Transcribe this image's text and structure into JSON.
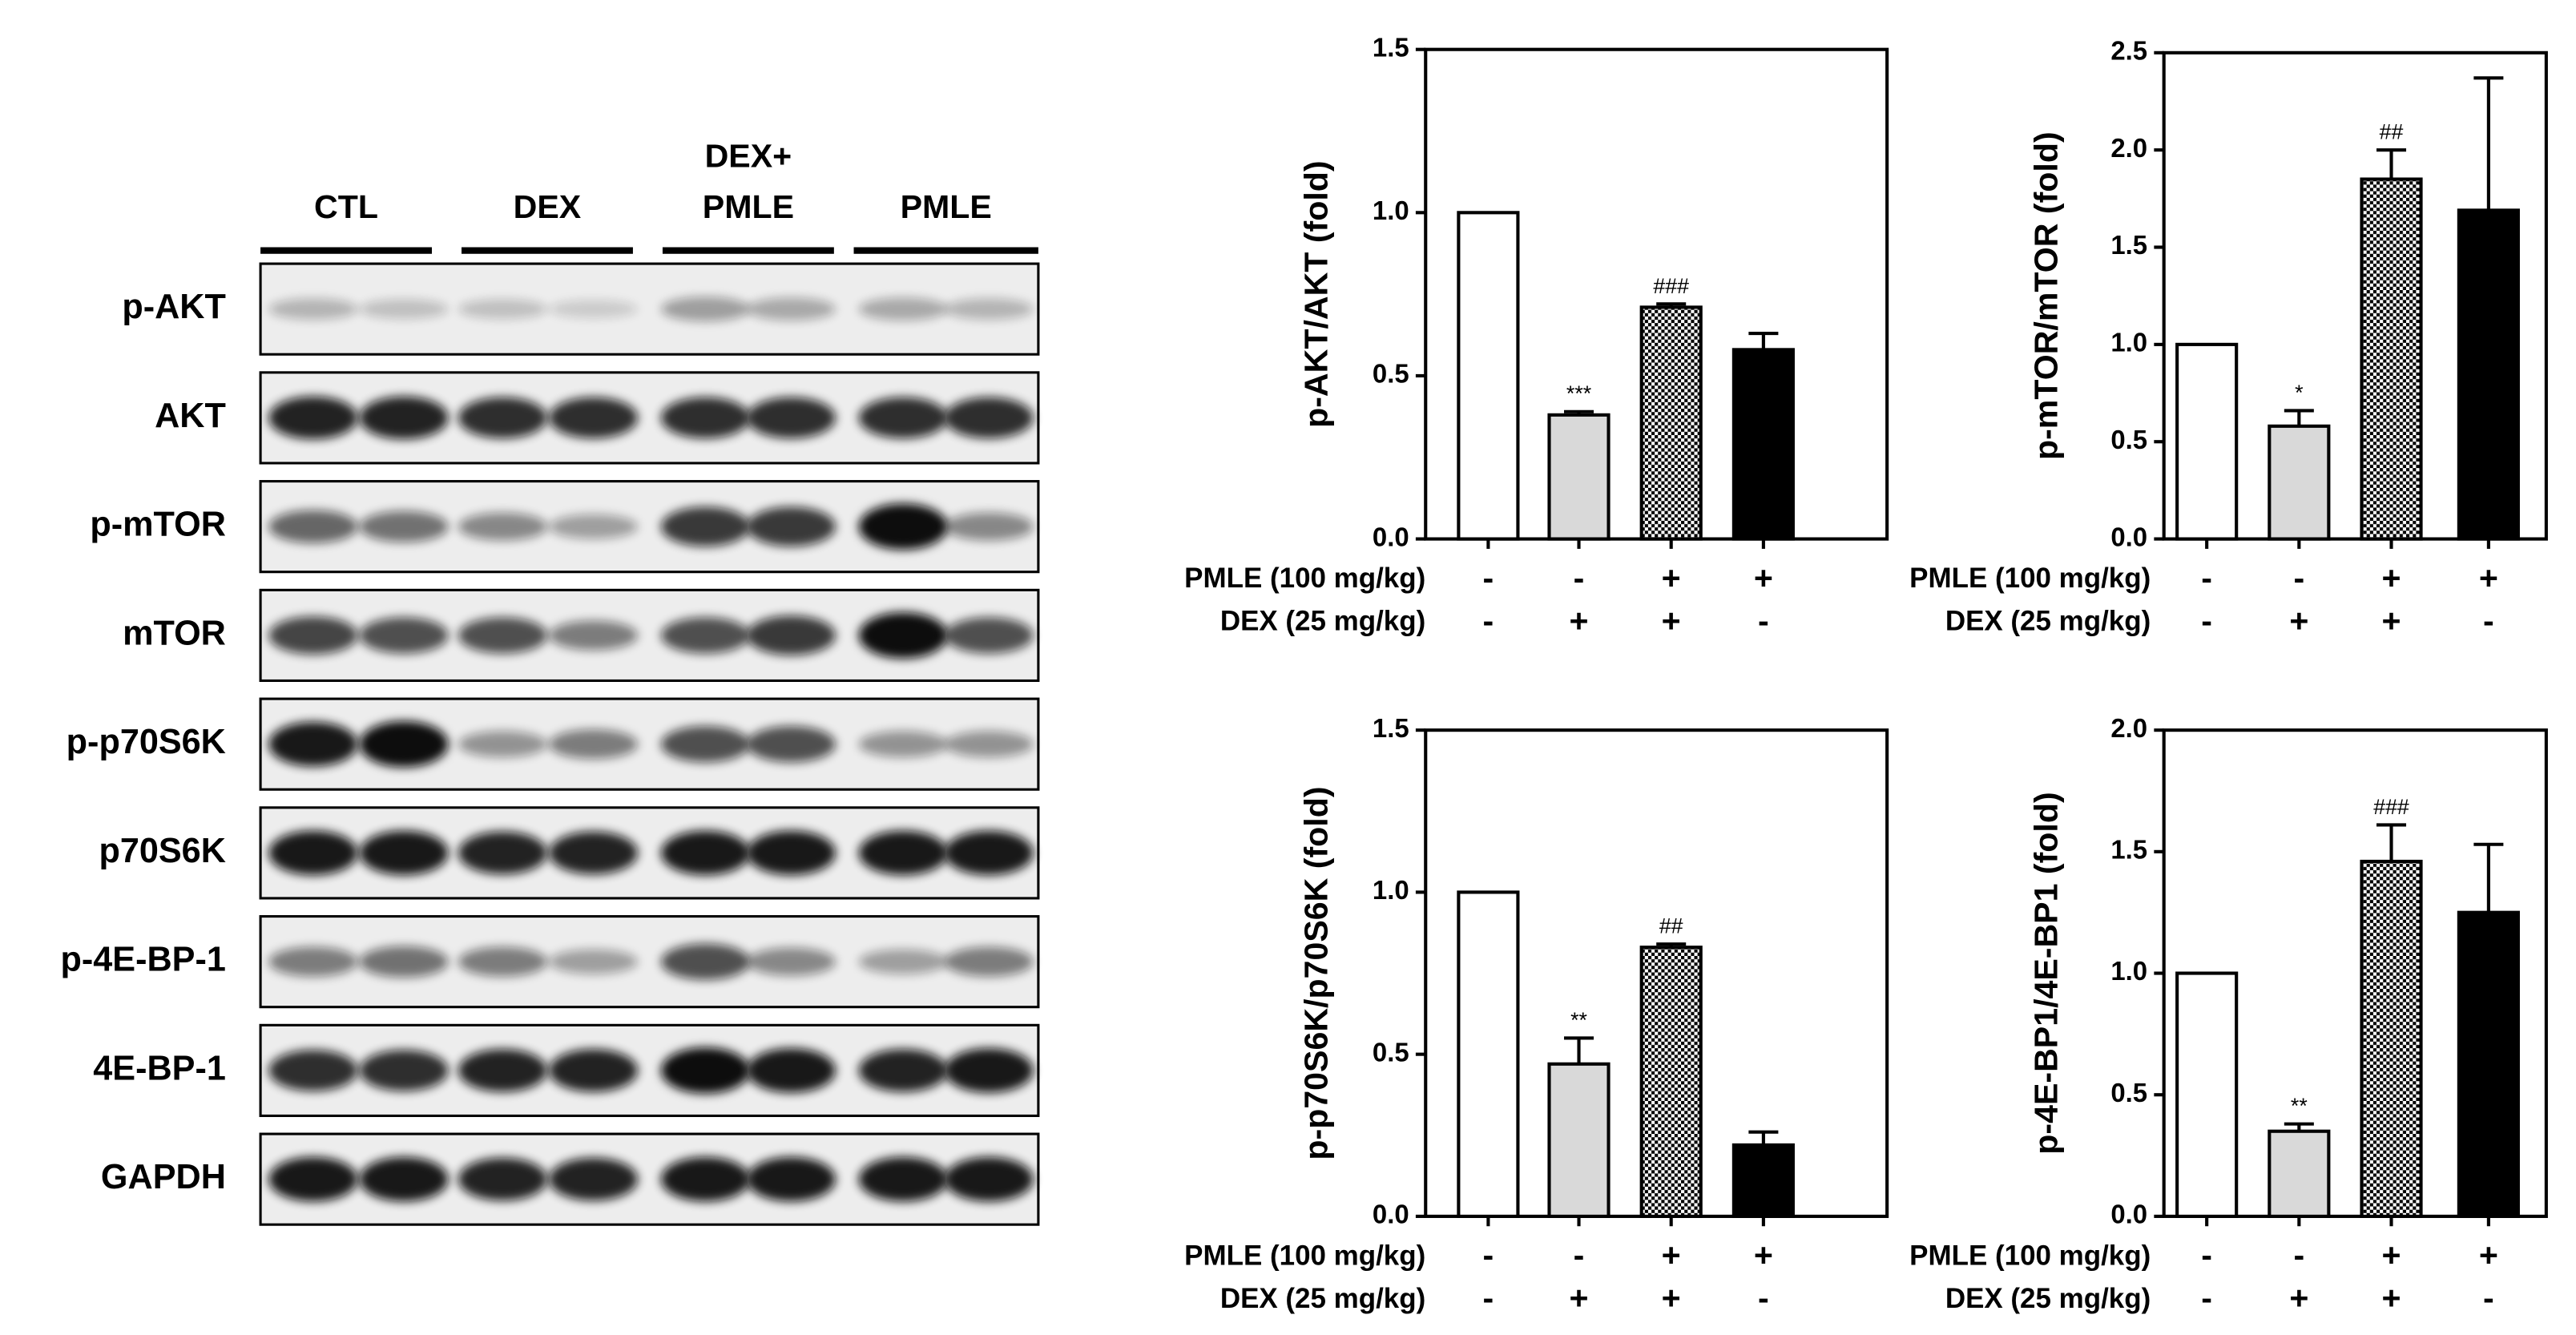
{
  "blot": {
    "groups": [
      [
        "CTL"
      ],
      [
        "DEX"
      ],
      [
        "DEX+",
        "PMLE"
      ],
      [
        "PMLE"
      ]
    ],
    "bands": [
      "p-AKT",
      "AKT",
      "p-mTOR",
      "mTOR",
      "p-p70S6K",
      "p70S6K",
      "p-4E-BP-1",
      "4E-BP-1",
      "GAPDH"
    ]
  },
  "chart_data": [
    {
      "type": "bar",
      "ylabel": "p-AKT/AKT (fold)",
      "values": [
        1.0,
        0.38,
        0.71,
        0.58
      ],
      "errors": [
        null,
        0.01,
        0.01,
        0.05
      ],
      "annotations": [
        null,
        "***",
        "###",
        null
      ],
      "fills": [
        "#ffffff",
        "#d9d9d9",
        "checker",
        "#000000"
      ],
      "ylim": [
        0,
        1.5
      ],
      "yticks": [
        {
          "value": 0,
          "label": "0.0"
        },
        0.5,
        {
          "value": 1,
          "label": "1.0"
        },
        1.5
      ],
      "conditions": [
        {
          "name": "PMLE (100 mg/kg)",
          "signs": [
            "-",
            "-",
            "+",
            "+"
          ]
        },
        {
          "name": "DEX (25 mg/kg)",
          "signs": [
            "-",
            "+",
            "+",
            "-"
          ]
        }
      ]
    },
    {
      "type": "bar",
      "ylabel": "p-mTOR/mTOR (fold)",
      "values": [
        1.0,
        0.58,
        1.85,
        1.69
      ],
      "errors": [
        null,
        0.08,
        0.15,
        0.68
      ],
      "annotations": [
        null,
        "*",
        "##",
        null
      ],
      "fills": [
        "#ffffff",
        "#d9d9d9",
        "checker",
        "#000000"
      ],
      "ylim": [
        0,
        2.5
      ],
      "yticks": [
        {
          "value": 0,
          "label": "0.0"
        },
        0.5,
        {
          "value": 1,
          "label": "1.0"
        },
        1.5,
        {
          "value": 2,
          "label": "2.0"
        },
        2.5
      ],
      "conditions": [
        {
          "name": "PMLE (100 mg/kg)",
          "signs": [
            "-",
            "-",
            "+",
            "+"
          ]
        },
        {
          "name": "DEX (25 mg/kg)",
          "signs": [
            "-",
            "+",
            "+",
            "-"
          ]
        }
      ]
    },
    {
      "type": "bar",
      "ylabel": "p-p70S6K/p70S6K (fold)",
      "values": [
        1.0,
        0.47,
        0.83,
        0.22
      ],
      "errors": [
        null,
        0.08,
        0.01,
        0.04
      ],
      "annotations": [
        null,
        "**",
        "##",
        null
      ],
      "fills": [
        "#ffffff",
        "#d9d9d9",
        "checker",
        "#000000"
      ],
      "ylim": [
        0,
        1.5
      ],
      "yticks": [
        {
          "value": 0,
          "label": "0.0"
        },
        0.5,
        {
          "value": 1,
          "label": "1.0"
        },
        1.5
      ],
      "conditions": [
        {
          "name": "PMLE (100 mg/kg)",
          "signs": [
            "-",
            "-",
            "+",
            "+"
          ]
        },
        {
          "name": "DEX (25 mg/kg)",
          "signs": [
            "-",
            "+",
            "+",
            "-"
          ]
        }
      ]
    },
    {
      "type": "bar",
      "ylabel": "p-4E-BP1/4E-BP1 (fold)",
      "values": [
        1.0,
        0.35,
        1.46,
        1.25
      ],
      "errors": [
        null,
        0.03,
        0.15,
        0.28
      ],
      "annotations": [
        null,
        "**",
        "###",
        null
      ],
      "fills": [
        "#ffffff",
        "#d9d9d9",
        "checker",
        "#000000"
      ],
      "ylim": [
        0,
        2
      ],
      "yticks": [
        {
          "value": 0,
          "label": "0.0"
        },
        0.5,
        {
          "value": 1,
          "label": "1.0"
        },
        1.5,
        {
          "value": 2,
          "label": "2.0"
        }
      ],
      "conditions": [
        {
          "name": "PMLE (100 mg/kg)",
          "signs": [
            "-",
            "-",
            "+",
            "+"
          ]
        },
        {
          "name": "DEX (25 mg/kg)",
          "signs": [
            "-",
            "+",
            "+",
            "-"
          ]
        }
      ]
    }
  ]
}
